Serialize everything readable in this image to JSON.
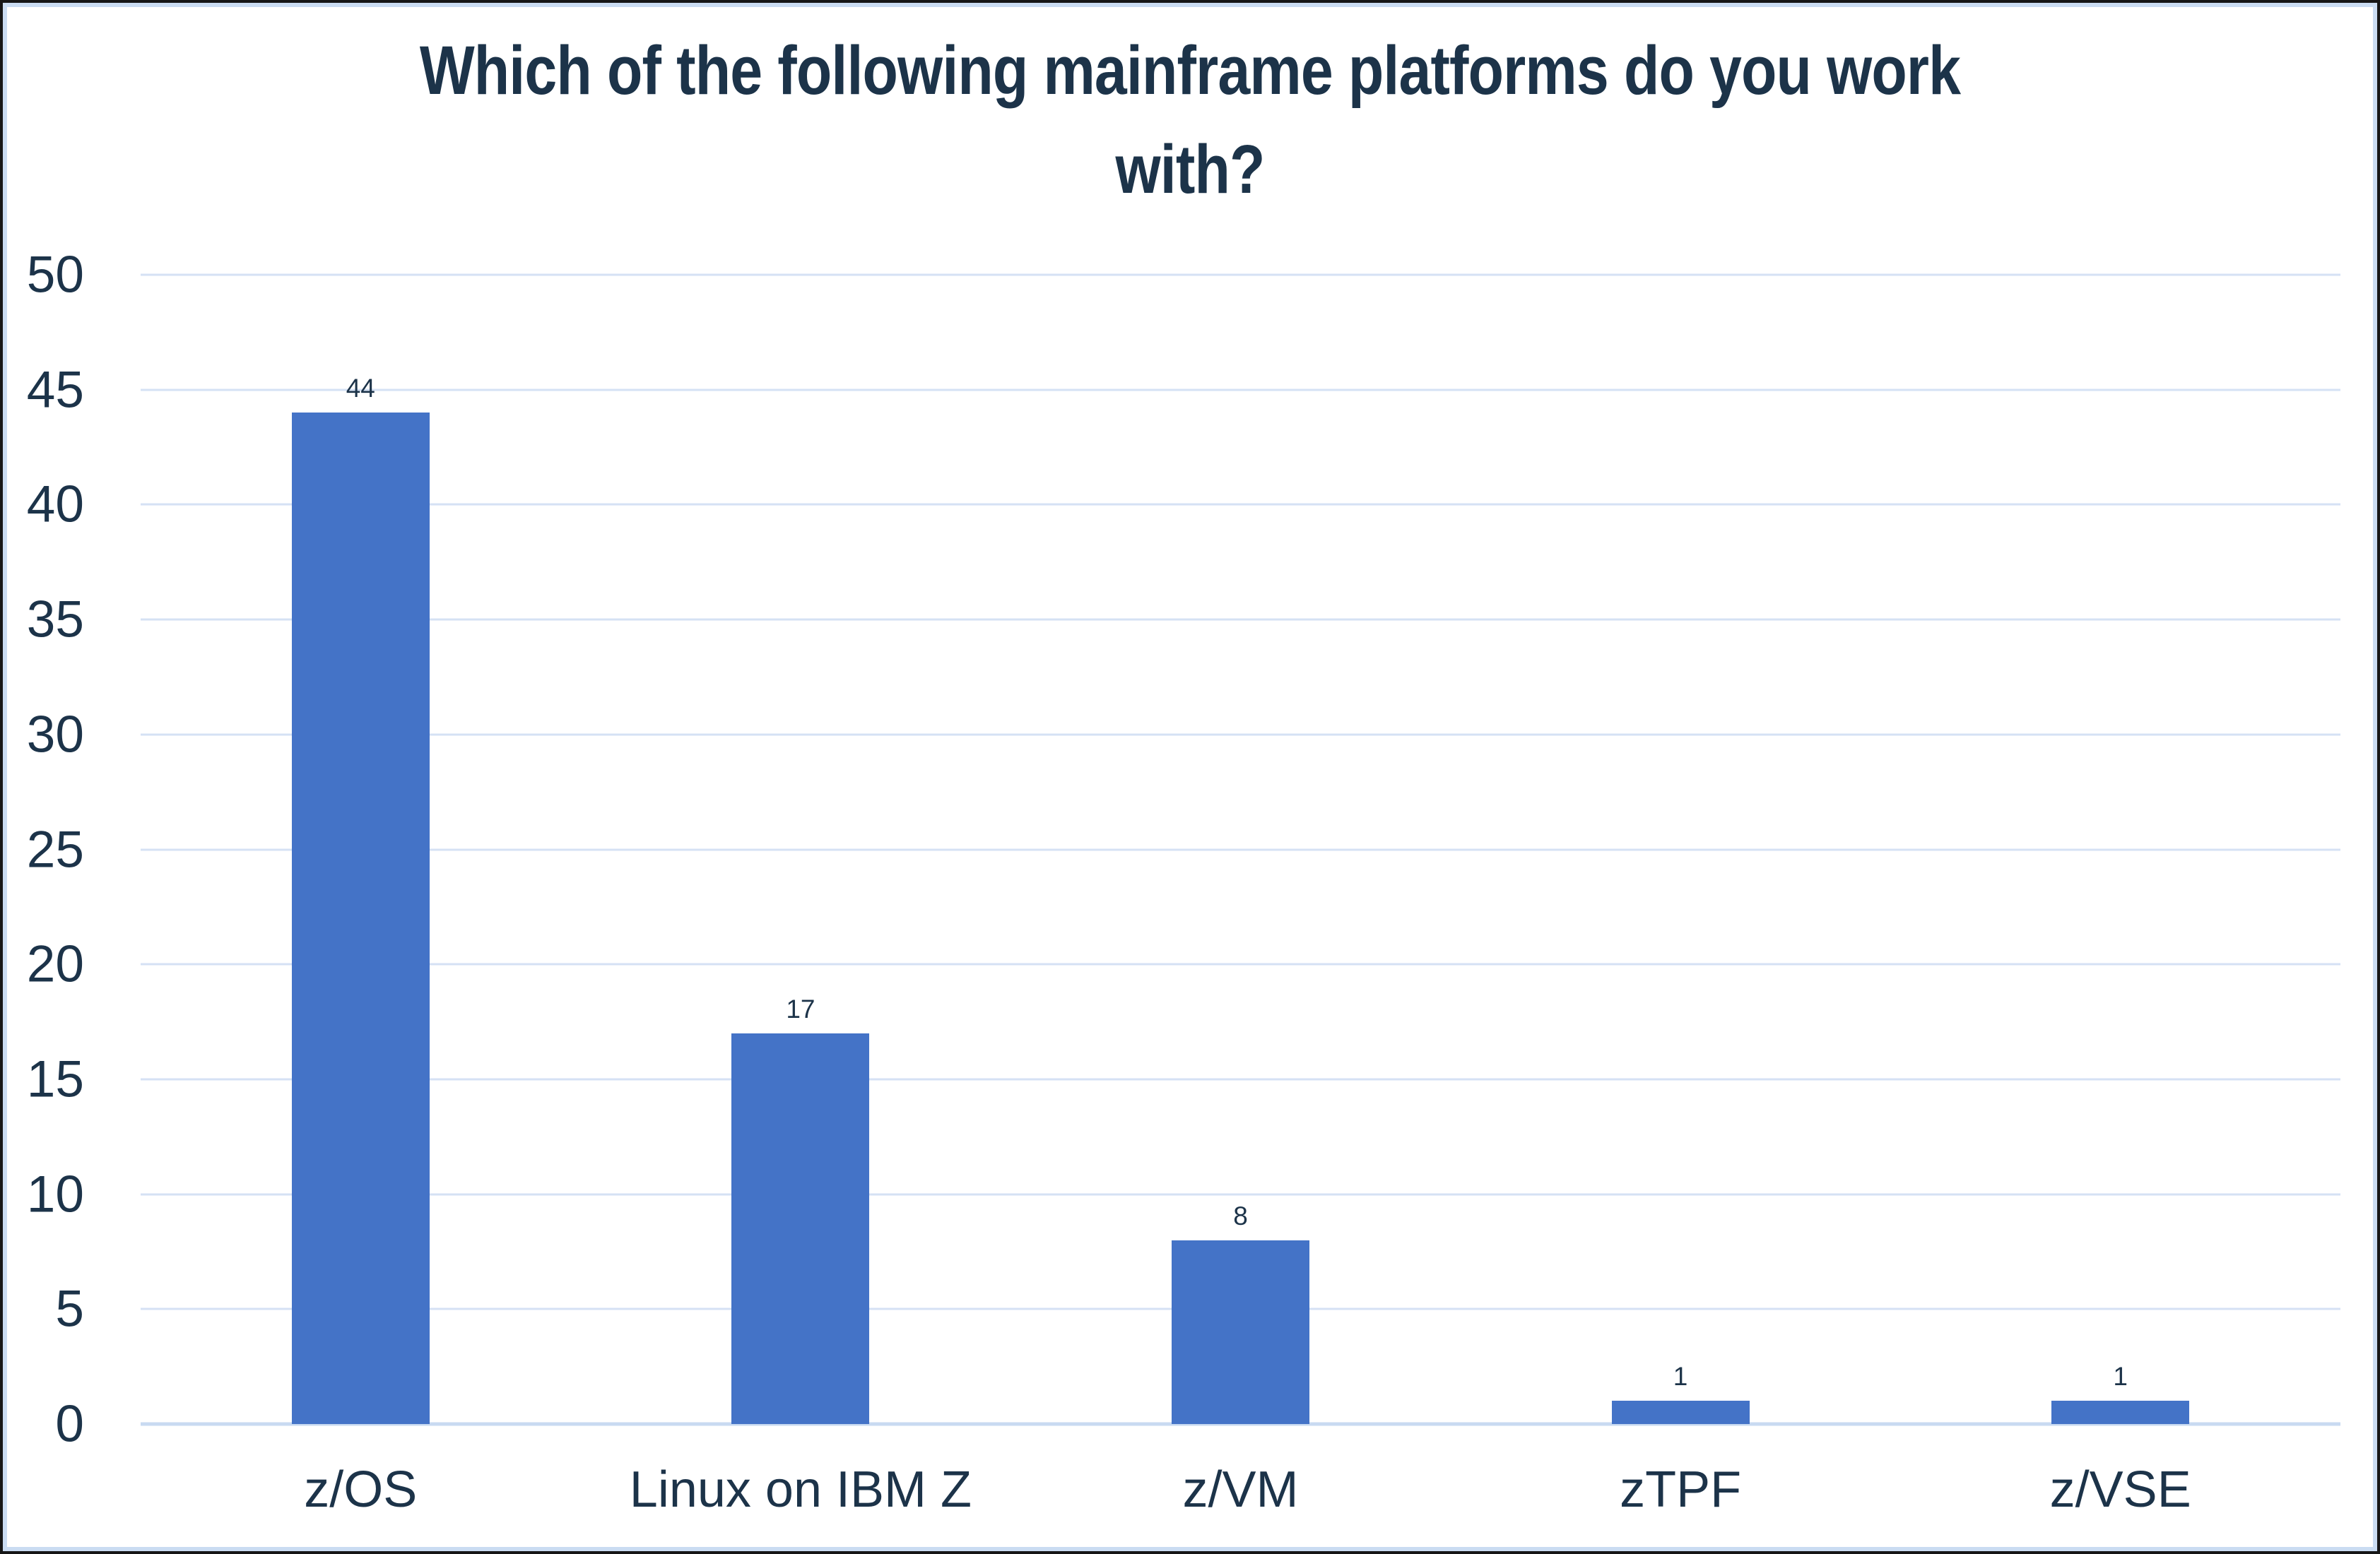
{
  "page": {
    "background": "#ffffff",
    "outer_border_color": "#161616",
    "inner_border_color": "#cadcf2"
  },
  "chart_data": {
    "type": "bar",
    "title": "Which of the following mainframe platforms do you work with?",
    "title_lines": [
      "Which of the following mainframe platforms do you work",
      "with?"
    ],
    "categories": [
      "z/OS",
      "Linux on IBM Z",
      "z/VM",
      "zTPF",
      "z/VSE"
    ],
    "values": [
      44,
      17,
      8,
      1,
      1
    ],
    "data_labels": [
      "44",
      "17",
      "8",
      "1",
      "1"
    ],
    "xlabel": "",
    "ylabel": "",
    "ylim": [
      0,
      50
    ],
    "yticks": [
      0,
      5,
      10,
      15,
      20,
      25,
      30,
      35,
      40,
      45,
      50
    ],
    "grid": true,
    "legend": false,
    "colors": {
      "bar": "#4473c7",
      "gridline": "#d5e1f4",
      "baseline": "#c8daf1",
      "text": "#1c3349"
    }
  }
}
